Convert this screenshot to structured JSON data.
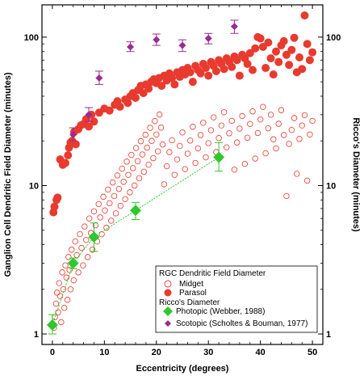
{
  "chart_data": {
    "type": "scatter",
    "xlabel": "Eccentricity (degrees)",
    "ylabel": "Ganglion Cell Dendritic Field Diameter (minutes)",
    "ylabel_right": "Ricco's Diameter (minutes)",
    "xlim": [
      -2,
      52
    ],
    "ylim": [
      0.85,
      165
    ],
    "yscale": "log",
    "grid": false,
    "x_ticks": [
      0,
      10,
      20,
      30,
      40,
      50
    ],
    "x_tick_labels": [
      "0",
      "10",
      "20",
      "30",
      "40",
      "50"
    ],
    "y_ticks": [
      1,
      10,
      100
    ],
    "y_tick_labels": [
      "1",
      "10",
      "100"
    ],
    "legend": {
      "position": "bottom-right",
      "group1_title": "RGC Dendritic Field Diameter",
      "group2_title": "Ricco's Diameter"
    },
    "series": [
      {
        "name": "Midget",
        "marker": "open-circle",
        "color": "#e83a2e",
        "points": [
          [
            0.3,
            1.1
          ],
          [
            0.5,
            1.3
          ],
          [
            0.7,
            1.6
          ],
          [
            0.9,
            1.9
          ],
          [
            1.1,
            1.4
          ],
          [
            1.3,
            2.2
          ],
          [
            1.5,
            1.8
          ],
          [
            1.7,
            1.2
          ],
          [
            1.9,
            2.6
          ],
          [
            2.1,
            2.0
          ],
          [
            2.3,
            1.5
          ],
          [
            2.5,
            2.9
          ],
          [
            2.7,
            2.4
          ],
          [
            2.9,
            1.7
          ],
          [
            3.1,
            3.3
          ],
          [
            3.3,
            2.7
          ],
          [
            3.5,
            2.0
          ],
          [
            3.7,
            3.7
          ],
          [
            3.9,
            3.0
          ],
          [
            4.1,
            2.3
          ],
          [
            4.4,
            4.2
          ],
          [
            4.7,
            3.4
          ],
          [
            5.0,
            2.6
          ],
          [
            5.3,
            4.7
          ],
          [
            5.6,
            3.8
          ],
          [
            5.9,
            2.9
          ],
          [
            6.2,
            5.3
          ],
          [
            6.5,
            4.3
          ],
          [
            6.8,
            3.3
          ],
          [
            7.1,
            6.0
          ],
          [
            7.4,
            4.8
          ],
          [
            7.7,
            3.7
          ],
          [
            8.0,
            6.7
          ],
          [
            8.3,
            5.4
          ],
          [
            8.6,
            4.2
          ],
          [
            8.9,
            7.5
          ],
          [
            9.2,
            6.1
          ],
          [
            9.5,
            4.7
          ],
          [
            9.8,
            8.4
          ],
          [
            10.1,
            6.8
          ],
          [
            10.4,
            5.2
          ],
          [
            10.7,
            9.4
          ],
          [
            11.0,
            7.6
          ],
          [
            11.3,
            5.8
          ],
          [
            11.6,
            10.5
          ],
          [
            11.9,
            8.5
          ],
          [
            12.2,
            6.5
          ],
          [
            12.5,
            11.7
          ],
          [
            12.8,
            9.5
          ],
          [
            13.1,
            7.3
          ],
          [
            13.4,
            13.0
          ],
          [
            13.7,
            10.6
          ],
          [
            14.0,
            8.1
          ],
          [
            14.3,
            14.5
          ],
          [
            14.6,
            11.8
          ],
          [
            14.9,
            9.0
          ],
          [
            15.2,
            16.1
          ],
          [
            15.5,
            13.1
          ],
          [
            15.8,
            10.0
          ],
          [
            16.1,
            17.9
          ],
          [
            16.4,
            14.6
          ],
          [
            16.7,
            11.2
          ],
          [
            17.0,
            19.9
          ],
          [
            17.3,
            16.2
          ],
          [
            17.6,
            12.4
          ],
          [
            17.9,
            22.0
          ],
          [
            18.2,
            18.0
          ],
          [
            18.5,
            13.8
          ],
          [
            18.8,
            24.5
          ],
          [
            19.1,
            20.0
          ],
          [
            19.4,
            15.3
          ],
          [
            19.7,
            27.2
          ],
          [
            20.0,
            22.1
          ],
          [
            20.3,
            17.0
          ],
          [
            20.6,
            30.1
          ],
          [
            20.9,
            24.6
          ],
          [
            21.2,
            18.9
          ],
          [
            21.5,
            10.2
          ],
          [
            22.0,
            13.5
          ],
          [
            22.5,
            16.8
          ],
          [
            23.0,
            20.2
          ],
          [
            23.5,
            11.8
          ],
          [
            24.0,
            15.0
          ],
          [
            24.5,
            18.5
          ],
          [
            25.0,
            22.8
          ],
          [
            25.5,
            12.9
          ],
          [
            26.0,
            16.4
          ],
          [
            26.5,
            20.1
          ],
          [
            27.0,
            24.9
          ],
          [
            27.5,
            14.2
          ],
          [
            28.0,
            17.8
          ],
          [
            28.5,
            21.9
          ],
          [
            29.0,
            26.5
          ],
          [
            29.5,
            15.5
          ],
          [
            30.0,
            19.3
          ],
          [
            30.5,
            23.6
          ],
          [
            31.0,
            28.8
          ],
          [
            31.5,
            16.8
          ],
          [
            32.0,
            20.9
          ],
          [
            32.5,
            25.4
          ],
          [
            33.0,
            31.2
          ],
          [
            33.5,
            18.1
          ],
          [
            34.0,
            22.5
          ],
          [
            34.5,
            27.3
          ],
          [
            35.0,
            12.8
          ],
          [
            35.5,
            19.5
          ],
          [
            36.0,
            24.2
          ],
          [
            36.5,
            29.4
          ],
          [
            37.0,
            14.0
          ],
          [
            37.5,
            21.0
          ],
          [
            38.0,
            26.0
          ],
          [
            38.5,
            31.6
          ],
          [
            39.0,
            15.2
          ],
          [
            39.5,
            22.6
          ],
          [
            40.0,
            27.9
          ],
          [
            40.5,
            33.9
          ],
          [
            41.0,
            16.5
          ],
          [
            41.5,
            24.3
          ],
          [
            42.0,
            30.0
          ],
          [
            42.5,
            20.5
          ],
          [
            43.0,
            17.8
          ],
          [
            43.5,
            26.1
          ],
          [
            44.0,
            32.2
          ],
          [
            44.5,
            21.9
          ],
          [
            45.0,
            8.5
          ],
          [
            45.5,
            19.1
          ],
          [
            46.0,
            23.7
          ],
          [
            46.5,
            28.5
          ],
          [
            47.0,
            12.0
          ],
          [
            47.5,
            20.6
          ],
          [
            48.0,
            25.4
          ],
          [
            48.5,
            29.8
          ],
          [
            49.0,
            10.8
          ],
          [
            49.5,
            22.1
          ],
          [
            50.0,
            27.3
          ]
        ]
      },
      {
        "name": "Parasol",
        "marker": "filled-circle",
        "color": "#e83a2e",
        "points": [
          [
            0.2,
            6.6
          ],
          [
            0.4,
            7.2
          ],
          [
            0.8,
            8.0
          ],
          [
            1.0,
            8.3
          ],
          [
            1.5,
            15.0
          ],
          [
            2.0,
            13.8
          ],
          [
            2.5,
            14.2
          ],
          [
            3.0,
            16.0
          ],
          [
            3.2,
            18.0
          ],
          [
            3.5,
            19.5
          ],
          [
            3.8,
            20.0
          ],
          [
            4.2,
            23.0
          ],
          [
            4.5,
            19.0
          ],
          [
            5.0,
            24.0
          ],
          [
            5.5,
            25.5
          ],
          [
            6.0,
            26.0
          ],
          [
            6.5,
            28.0
          ],
          [
            7.0,
            25.0
          ],
          [
            7.5,
            30.0
          ],
          [
            8.0,
            27.0
          ],
          [
            9.0,
            31.0
          ],
          [
            10.0,
            33.0
          ],
          [
            11.0,
            32.0
          ],
          [
            12.0,
            35.0
          ],
          [
            12.5,
            37.0
          ],
          [
            13.0,
            34.0
          ],
          [
            14.0,
            38.0
          ],
          [
            14.5,
            36.0
          ],
          [
            15.0,
            40.0
          ],
          [
            15.5,
            42.0
          ],
          [
            16.0,
            39.0
          ],
          [
            16.5,
            44.0
          ],
          [
            17.0,
            47.0
          ],
          [
            17.5,
            42.0
          ],
          [
            18.0,
            48.0
          ],
          [
            18.5,
            45.0
          ],
          [
            19.0,
            50.0
          ],
          [
            19.5,
            52.0
          ],
          [
            20.0,
            49.0
          ],
          [
            20.5,
            53.0
          ],
          [
            21.0,
            47.0
          ],
          [
            21.5,
            55.0
          ],
          [
            22.0,
            51.0
          ],
          [
            22.5,
            57.0
          ],
          [
            23.0,
            53.0
          ],
          [
            23.5,
            48.0
          ],
          [
            24.0,
            58.0
          ],
          [
            24.5,
            54.0
          ],
          [
            25.0,
            60.0
          ],
          [
            25.5,
            56.0
          ],
          [
            26.0,
            62.0
          ],
          [
            26.5,
            58.0
          ],
          [
            27.0,
            50.0
          ],
          [
            27.5,
            64.0
          ],
          [
            28.0,
            60.0
          ],
          [
            28.5,
            57.0
          ],
          [
            29.0,
            66.0
          ],
          [
            29.5,
            62.0
          ],
          [
            30.0,
            55.0
          ],
          [
            30.5,
            68.0
          ],
          [
            31.0,
            64.0
          ],
          [
            31.5,
            59.0
          ],
          [
            32.0,
            70.0
          ],
          [
            32.5,
            66.0
          ],
          [
            33.0,
            61.0
          ],
          [
            33.5,
            72.0
          ],
          [
            34.0,
            68.0
          ],
          [
            34.5,
            63.0
          ],
          [
            35.0,
            74.0
          ],
          [
            35.5,
            70.0
          ],
          [
            36.0,
            55.0
          ],
          [
            36.5,
            76.0
          ],
          [
            37.0,
            72.0
          ],
          [
            37.5,
            66.0
          ],
          [
            38.0,
            78.0
          ],
          [
            38.5,
            60.0
          ],
          [
            39.0,
            84.0
          ],
          [
            39.5,
            100.0
          ],
          [
            40.0,
            98.0
          ],
          [
            40.5,
            86.0
          ],
          [
            41.0,
            62.0
          ],
          [
            41.5,
            92.0
          ],
          [
            42.0,
            72.0
          ],
          [
            42.5,
            56.0
          ],
          [
            43.0,
            80.0
          ],
          [
            43.5,
            68.0
          ],
          [
            44.0,
            88.0
          ],
          [
            44.5,
            94.0
          ],
          [
            45.0,
            76.0
          ],
          [
            45.5,
            65.0
          ],
          [
            46.0,
            82.0
          ],
          [
            46.5,
            99.0
          ],
          [
            47.0,
            58.0
          ],
          [
            47.5,
            73.0
          ],
          [
            48.0,
            61.0
          ],
          [
            48.5,
            140.0
          ],
          [
            49.0,
            90.0
          ],
          [
            49.5,
            70.0
          ],
          [
            50.0,
            79.0
          ]
        ]
      },
      {
        "name": "Photopic (Webber, 1988)",
        "marker": "filled-diamond",
        "color": "#2ec82e",
        "line": true,
        "points": [
          {
            "x": 0,
            "y": 1.15,
            "low": 1.0,
            "high": 1.35
          },
          {
            "x": 4,
            "y": 3.0,
            "low": 2.75,
            "high": 3.25
          },
          {
            "x": 8,
            "y": 4.5,
            "low": 3.6,
            "high": 5.6
          },
          {
            "x": 16,
            "y": 6.8,
            "low": 5.9,
            "high": 7.7
          },
          {
            "x": 32,
            "y": 15.5,
            "low": 12.5,
            "high": 19.5
          }
        ]
      },
      {
        "name": "Scotopic (Scholtes & Bouman, 1977)",
        "marker": "filled-diamond",
        "color": "#992c91",
        "line": false,
        "points": [
          {
            "x": 4,
            "y": 22.0,
            "low": 20.0,
            "high": 24.5
          },
          {
            "x": 7,
            "y": 30.0,
            "low": 27.0,
            "high": 33.5
          },
          {
            "x": 9,
            "y": 53.0,
            "low": 48.0,
            "high": 59.0
          },
          {
            "x": 15,
            "y": 86.0,
            "low": 80.0,
            "high": 93.0
          },
          {
            "x": 20,
            "y": 96.0,
            "low": 88.0,
            "high": 105.0
          },
          {
            "x": 25,
            "y": 88.0,
            "low": 80.0,
            "high": 96.0
          },
          {
            "x": 30,
            "y": 98.0,
            "low": 90.0,
            "high": 106.0
          },
          {
            "x": 35,
            "y": 118.0,
            "low": 106.0,
            "high": 130.0
          }
        ]
      }
    ]
  }
}
